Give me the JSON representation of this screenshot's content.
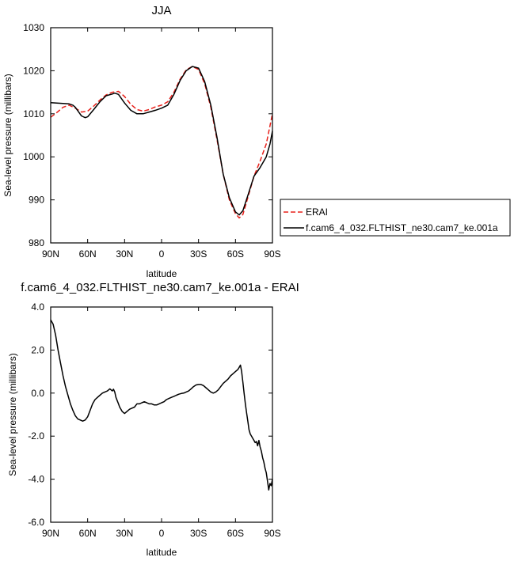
{
  "chart_data": [
    {
      "type": "line",
      "title": "JJA",
      "xlabel": "latitude",
      "ylabel": "Sea-level pressure (millibars)",
      "xlim": [
        90,
        -90
      ],
      "ylim": [
        980,
        1030
      ],
      "x_ticks": [
        {
          "value": 90,
          "label": "90N"
        },
        {
          "value": 60,
          "label": "60N"
        },
        {
          "value": 30,
          "label": "30N"
        },
        {
          "value": 0,
          "label": "0"
        },
        {
          "value": -30,
          "label": "30S"
        },
        {
          "value": -60,
          "label": "60S"
        },
        {
          "value": -90,
          "label": "90S"
        }
      ],
      "y_ticks": [
        {
          "value": 980,
          "label": "980"
        },
        {
          "value": 990,
          "label": "990"
        },
        {
          "value": 1000,
          "label": "1000"
        },
        {
          "value": 1010,
          "label": "1010"
        },
        {
          "value": 1020,
          "label": "1020"
        },
        {
          "value": 1030,
          "label": "1030"
        }
      ],
      "legend_position": "outside-right",
      "series": [
        {
          "name": "ERAI",
          "color": "#e8201a",
          "dash": true,
          "x": [
            90,
            85,
            80,
            75,
            70,
            65,
            60,
            55,
            50,
            45,
            40,
            35,
            30,
            25,
            20,
            15,
            10,
            5,
            0,
            -5,
            -10,
            -15,
            -20,
            -25,
            -30,
            -35,
            -40,
            -45,
            -50,
            -55,
            -60,
            -63,
            -66,
            -70,
            -75,
            -80,
            -85,
            -90
          ],
          "y": [
            1009.2,
            1010.3,
            1011.5,
            1012.0,
            1011.3,
            1010.4,
            1010.6,
            1011.8,
            1013.2,
            1014.4,
            1015.0,
            1015.2,
            1014.0,
            1012.2,
            1011.0,
            1010.6,
            1011.0,
            1011.6,
            1012.0,
            1012.8,
            1015.0,
            1018.0,
            1020.2,
            1021.0,
            1020.3,
            1017.0,
            1011.5,
            1004.0,
            996.0,
            990.0,
            986.8,
            985.8,
            986.6,
            990.5,
            995.5,
            999.0,
            1003.0,
            1010.0
          ]
        },
        {
          "name": "f.cam6_4_032.FLTHIST_ne30.cam7_ke.001a",
          "color": "#000000",
          "dash": false,
          "x": [
            90,
            85,
            80,
            75,
            72,
            70,
            67,
            65,
            62,
            60,
            55,
            50,
            45,
            40,
            38,
            35,
            30,
            25,
            20,
            15,
            10,
            5,
            0,
            -5,
            -10,
            -15,
            -20,
            -25,
            -30,
            -35,
            -40,
            -45,
            -50,
            -55,
            -60,
            -63,
            -66,
            -70,
            -75,
            -80,
            -85,
            -88,
            -90
          ],
          "y": [
            1012.6,
            1012.5,
            1012.4,
            1012.3,
            1012.0,
            1011.5,
            1010.3,
            1009.5,
            1009.1,
            1009.3,
            1011.0,
            1012.8,
            1014.2,
            1014.6,
            1014.8,
            1014.5,
            1012.5,
            1010.8,
            1010.0,
            1010.0,
            1010.4,
            1010.8,
            1011.3,
            1012.0,
            1014.5,
            1017.7,
            1020.0,
            1021.0,
            1020.6,
            1017.5,
            1012.0,
            1004.5,
            996.0,
            990.5,
            987.2,
            986.5,
            987.5,
            991.0,
            995.5,
            997.5,
            1000.0,
            1003.0,
            1006.0
          ]
        }
      ]
    },
    {
      "type": "line",
      "title": "f.cam6_4_032.FLTHIST_ne30.cam7_ke.001a - ERAI",
      "xlabel": "latitude",
      "ylabel": "Sea-level pressure (millibars)",
      "xlim": [
        90,
        -90
      ],
      "ylim": [
        -6.0,
        4.0
      ],
      "x_ticks": [
        {
          "value": 90,
          "label": "90N"
        },
        {
          "value": 60,
          "label": "60N"
        },
        {
          "value": 30,
          "label": "30N"
        },
        {
          "value": 0,
          "label": "0"
        },
        {
          "value": -30,
          "label": "30S"
        },
        {
          "value": -60,
          "label": "60S"
        },
        {
          "value": -90,
          "label": "90S"
        }
      ],
      "y_ticks": [
        {
          "value": -6.0,
          "label": "-6.0"
        },
        {
          "value": -4.0,
          "label": "-4.0"
        },
        {
          "value": -2.0,
          "label": "-2.0"
        },
        {
          "value": 0.0,
          "label": "0.0"
        },
        {
          "value": 2.0,
          "label": "2.0"
        },
        {
          "value": 4.0,
          "label": "4.0"
        }
      ],
      "series": [
        {
          "name": "",
          "color": "#000000",
          "dash": false,
          "x": [
            90,
            88,
            86,
            84,
            82,
            80,
            78,
            76,
            74,
            72,
            70,
            68,
            66,
            64,
            62,
            60,
            58,
            56,
            54,
            52,
            50,
            48,
            46,
            44,
            42,
            41,
            40,
            39,
            38,
            37,
            36,
            35,
            34,
            33,
            32,
            31,
            30,
            28,
            26,
            24,
            22,
            20,
            18,
            16,
            14,
            12,
            10,
            8,
            6,
            4,
            2,
            0,
            -2,
            -4,
            -6,
            -8,
            -10,
            -12,
            -14,
            -16,
            -18,
            -20,
            -22,
            -24,
            -26,
            -28,
            -30,
            -32,
            -34,
            -36,
            -38,
            -40,
            -42,
            -44,
            -46,
            -48,
            -50,
            -52,
            -54,
            -56,
            -58,
            -60,
            -62,
            -63,
            -64,
            -65,
            -66,
            -67,
            -68,
            -69,
            -70,
            -71,
            -72,
            -73,
            -74,
            -75,
            -76,
            -77,
            -78,
            -79,
            -80,
            -81,
            -82,
            -83,
            -84,
            -85,
            -86,
            -87,
            -88,
            -89,
            -90
          ],
          "y": [
            3.4,
            3.2,
            2.7,
            2.0,
            1.4,
            0.8,
            0.3,
            -0.1,
            -0.5,
            -0.8,
            -1.05,
            -1.2,
            -1.25,
            -1.3,
            -1.25,
            -1.1,
            -0.8,
            -0.5,
            -0.3,
            -0.2,
            -0.1,
            0.0,
            0.05,
            0.1,
            0.2,
            0.15,
            0.1,
            0.18,
            0.05,
            -0.2,
            -0.35,
            -0.5,
            -0.65,
            -0.75,
            -0.85,
            -0.9,
            -0.95,
            -0.85,
            -0.75,
            -0.7,
            -0.65,
            -0.5,
            -0.5,
            -0.45,
            -0.4,
            -0.45,
            -0.5,
            -0.5,
            -0.55,
            -0.55,
            -0.5,
            -0.45,
            -0.4,
            -0.3,
            -0.25,
            -0.2,
            -0.15,
            -0.1,
            -0.05,
            -0.02,
            0.0,
            0.05,
            0.1,
            0.2,
            0.3,
            0.38,
            0.4,
            0.4,
            0.35,
            0.25,
            0.15,
            0.05,
            0.0,
            0.05,
            0.15,
            0.3,
            0.45,
            0.55,
            0.65,
            0.8,
            0.9,
            1.0,
            1.1,
            1.2,
            1.3,
            1.0,
            0.5,
            0.0,
            -0.5,
            -0.9,
            -1.3,
            -1.7,
            -1.9,
            -2.0,
            -2.1,
            -2.2,
            -2.3,
            -2.25,
            -2.45,
            -2.2,
            -2.5,
            -2.7,
            -3.0,
            -3.2,
            -3.5,
            -3.7,
            -4.1,
            -4.5,
            -4.2,
            -4.3,
            -4.0
          ]
        }
      ]
    }
  ]
}
